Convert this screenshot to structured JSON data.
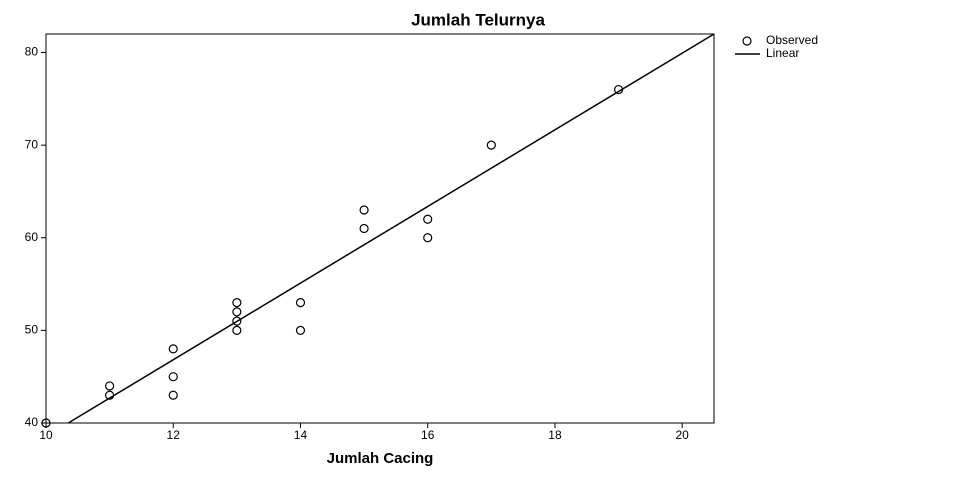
{
  "chart_data": {
    "type": "scatter",
    "title": "Jumlah Telurnya",
    "x_label": "Jumlah Cacing",
    "xlim": [
      10,
      20.5
    ],
    "ylim": [
      40,
      82
    ],
    "xticks": [
      10,
      12,
      14,
      16,
      18,
      20
    ],
    "yticks": [
      40,
      50,
      60,
      70,
      80
    ],
    "legend": "outside-right",
    "series": [
      {
        "name": "Observed",
        "color": "#000000",
        "marker": "circle",
        "x": [
          10,
          11,
          11,
          12,
          12,
          12,
          13,
          13,
          13,
          13,
          14,
          14,
          15,
          15,
          16,
          16,
          17,
          19
        ],
        "values": [
          40,
          44,
          43,
          48,
          45,
          43,
          53,
          52,
          51,
          50,
          53,
          50,
          63,
          61,
          62,
          60,
          70,
          76
        ]
      },
      {
        "name": "Linear",
        "color": "#000000",
        "marker": "line",
        "x": [
          10.35,
          20.5
        ],
        "values": [
          40,
          82
        ]
      }
    ]
  }
}
